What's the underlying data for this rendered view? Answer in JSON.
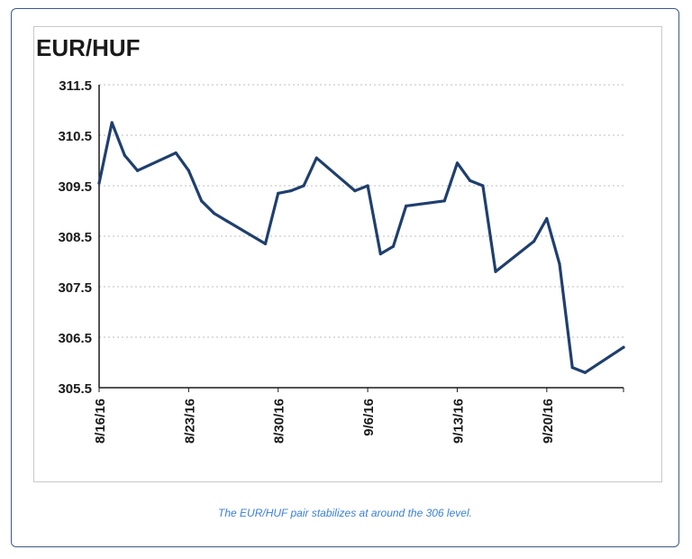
{
  "caption": "The EUR/HUF pair stabilizes at around the 306 level.",
  "chart_data": {
    "type": "line",
    "title": "EUR/HUF",
    "xlabel": "",
    "ylabel": "",
    "ylim": [
      305.5,
      311.5
    ],
    "yticks": [
      "305.5",
      "306.5",
      "307.5",
      "308.5",
      "309.5",
      "310.5",
      "311.5"
    ],
    "xtick_labels": [
      "8/16/16",
      "8/23/16",
      "8/30/16",
      "9/6/16",
      "9/13/16",
      "9/20/16"
    ],
    "grid": true,
    "color": "#1f3f6e",
    "series": [
      {
        "x": [
          "2016-08-16",
          "2016-08-17",
          "2016-08-18",
          "2016-08-19",
          "2016-08-22",
          "2016-08-23",
          "2016-08-24",
          "2016-08-25",
          "2016-08-26",
          "2016-08-29",
          "2016-08-30",
          "2016-08-31",
          "2016-09-01",
          "2016-09-02",
          "2016-09-05",
          "2016-09-06",
          "2016-09-07",
          "2016-09-08",
          "2016-09-09",
          "2016-09-12",
          "2016-09-13",
          "2016-09-14",
          "2016-09-15",
          "2016-09-16",
          "2016-09-19",
          "2016-09-20",
          "2016-09-21",
          "2016-09-22",
          "2016-09-23",
          "2016-09-26"
        ],
        "values": [
          309.55,
          310.75,
          310.1,
          309.8,
          310.15,
          309.8,
          309.2,
          308.95,
          308.8,
          308.35,
          309.35,
          309.4,
          309.5,
          310.05,
          309.4,
          309.5,
          308.15,
          308.3,
          309.1,
          309.2,
          309.95,
          309.6,
          309.5,
          307.8,
          308.4,
          308.85,
          307.95,
          305.9,
          305.8,
          306.3
        ]
      }
    ]
  }
}
